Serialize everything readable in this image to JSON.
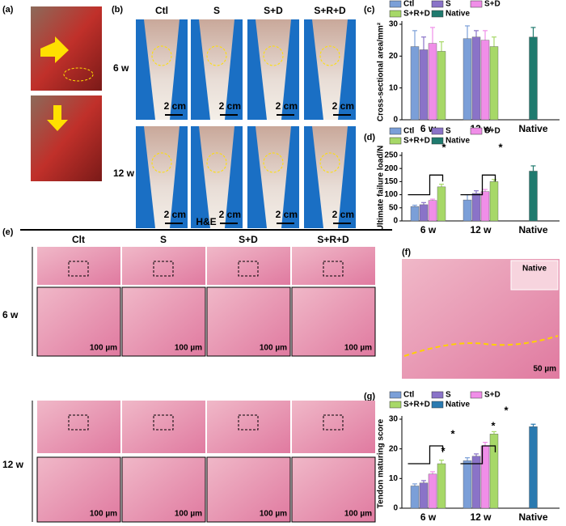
{
  "panel_labels": [
    "(a)",
    "(b)",
    "(c)",
    "(d)",
    "(e)",
    "(f)",
    "(g)"
  ],
  "photos_b": {
    "columns": [
      "Ctl",
      "S",
      "S+D",
      "S+R+D"
    ],
    "rows": [
      "6 w",
      "12 w"
    ],
    "scale": "2 cm"
  },
  "histology_e": {
    "title": "H&E",
    "columns": [
      "Clt",
      "S",
      "S+D",
      "S+R+D"
    ],
    "rows": [
      "6 w",
      "12 w"
    ],
    "scale": "100 µm"
  },
  "histology_f": {
    "label": "Native",
    "scale": "50 µm"
  },
  "chart_data": [
    {
      "type": "bar",
      "ylabel": "Cross-sectional area/mm²",
      "categories": [
        "6 w",
        "12 w",
        "Native"
      ],
      "ylim": [
        0,
        30
      ],
      "yticks": [
        0,
        10,
        20,
        30
      ],
      "annotations": [],
      "series": [
        {
          "name": "Ctl",
          "color": "#7b9fd8",
          "values": [
            23,
            25.5,
            null
          ],
          "errors": [
            5,
            4,
            null
          ]
        },
        {
          "name": "S",
          "color": "#8a73c8",
          "values": [
            22,
            26,
            null
          ],
          "errors": [
            4,
            2,
            null
          ]
        },
        {
          "name": "S+D",
          "color": "#f08ee8",
          "values": [
            24,
            25,
            null
          ],
          "errors": [
            5,
            3,
            null
          ]
        },
        {
          "name": "S+R+D",
          "color": "#a7d868",
          "values": [
            21.5,
            23,
            null
          ],
          "errors": [
            3,
            3,
            null
          ]
        },
        {
          "name": "Native",
          "color": "#1f7a6e",
          "values": [
            null,
            null,
            26
          ],
          "errors": [
            null,
            null,
            3
          ]
        }
      ]
    },
    {
      "type": "bar",
      "ylabel": "Ultimate failure load/N",
      "categories": [
        "6 w",
        "12 w",
        "Native"
      ],
      "ylim": [
        0,
        250
      ],
      "yticks": [
        0,
        50,
        100,
        150,
        200,
        250
      ],
      "annotations": [
        "*",
        "*"
      ],
      "series": [
        {
          "name": "Ctl",
          "color": "#7b9fd8",
          "values": [
            55,
            80,
            null
          ],
          "errors": [
            5,
            20,
            null
          ]
        },
        {
          "name": "S",
          "color": "#8a73c8",
          "values": [
            62,
            105,
            null
          ],
          "errors": [
            8,
            10,
            null
          ]
        },
        {
          "name": "S+D",
          "color": "#f08ee8",
          "values": [
            78,
            112,
            null
          ],
          "errors": [
            5,
            8,
            null
          ]
        },
        {
          "name": "S+R+D",
          "color": "#a7d868",
          "values": [
            130,
            150,
            null
          ],
          "errors": [
            10,
            8,
            null
          ]
        },
        {
          "name": "Native",
          "color": "#1f7a6e",
          "values": [
            null,
            null,
            190
          ],
          "errors": [
            null,
            null,
            20
          ]
        }
      ]
    },
    {
      "type": "bar",
      "ylabel": "Tendon maturing score",
      "categories": [
        "6 w",
        "12 w",
        "Native"
      ],
      "ylim": [
        0,
        30
      ],
      "yticks": [
        0,
        10,
        20,
        30
      ],
      "annotations": [
        "*",
        "*",
        "*",
        "*"
      ],
      "series": [
        {
          "name": "Ctl",
          "color": "#7b9fd8",
          "values": [
            7.5,
            16,
            null
          ],
          "errors": [
            0.7,
            1,
            null
          ]
        },
        {
          "name": "S",
          "color": "#8a73c8",
          "values": [
            8.5,
            17.5,
            null
          ],
          "errors": [
            0.8,
            0.8,
            null
          ]
        },
        {
          "name": "S+D",
          "color": "#f08ee8",
          "values": [
            11.5,
            21,
            null
          ],
          "errors": [
            0.8,
            1.2,
            null
          ]
        },
        {
          "name": "S+R+D",
          "color": "#a7d868",
          "values": [
            15,
            25,
            null
          ],
          "errors": [
            1.2,
            0.8,
            null
          ]
        },
        {
          "name": "Native",
          "color": "#2a7ab0",
          "values": [
            null,
            null,
            27.5
          ],
          "errors": [
            null,
            null,
            0.8
          ]
        }
      ]
    }
  ]
}
